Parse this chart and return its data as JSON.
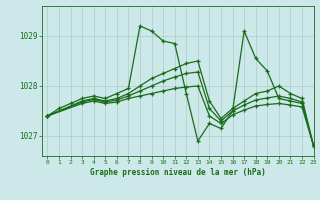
{
  "title": "Graphe pression niveau de la mer (hPa)",
  "background_color": "#cce8e8",
  "grid_color": "#aacccc",
  "line_color": "#1a6b1a",
  "xlim": [
    -0.5,
    23
  ],
  "ylim": [
    1026.6,
    1029.6
  ],
  "yticks": [
    1027,
    1028,
    1029
  ],
  "xticks": [
    0,
    1,
    2,
    3,
    4,
    5,
    6,
    7,
    8,
    9,
    10,
    11,
    12,
    13,
    14,
    15,
    16,
    17,
    18,
    19,
    20,
    21,
    22,
    23
  ],
  "series": [
    {
      "x": [
        0,
        1,
        2,
        3,
        4,
        5,
        6,
        7,
        8,
        9,
        10,
        11,
        12,
        13,
        14,
        15,
        16,
        17,
        18,
        19,
        20,
        21,
        22,
        23
      ],
      "y": [
        1027.4,
        1027.55,
        1027.65,
        1027.75,
        1027.8,
        1027.75,
        1027.85,
        1027.95,
        1029.2,
        1029.1,
        1028.9,
        1028.85,
        1027.85,
        1026.9,
        1027.25,
        1027.15,
        1027.5,
        1029.1,
        1028.55,
        1028.3,
        1027.75,
        1027.7,
        1027.65,
        1026.8
      ]
    },
    {
      "x": [
        0,
        3,
        4,
        5,
        6,
        7,
        8,
        9,
        10,
        11,
        12,
        13,
        14,
        15,
        16,
        17,
        18,
        19,
        20,
        21,
        22,
        23
      ],
      "y": [
        1027.4,
        1027.7,
        1027.75,
        1027.7,
        1027.75,
        1027.85,
        1028.0,
        1028.15,
        1028.25,
        1028.35,
        1028.45,
        1028.5,
        1027.7,
        1027.35,
        1027.55,
        1027.7,
        1027.85,
        1027.9,
        1028.0,
        1027.85,
        1027.75,
        1026.8
      ]
    },
    {
      "x": [
        0,
        3,
        4,
        5,
        6,
        7,
        8,
        9,
        10,
        11,
        12,
        13,
        14,
        15,
        16,
        17,
        18,
        19,
        20,
        21,
        22,
        23
      ],
      "y": [
        1027.4,
        1027.68,
        1027.73,
        1027.68,
        1027.72,
        1027.8,
        1027.9,
        1028.0,
        1028.1,
        1028.18,
        1028.25,
        1028.28,
        1027.55,
        1027.3,
        1027.5,
        1027.62,
        1027.72,
        1027.76,
        1027.8,
        1027.75,
        1027.68,
        1026.8
      ]
    },
    {
      "x": [
        0,
        3,
        4,
        5,
        6,
        7,
        8,
        9,
        10,
        11,
        12,
        13,
        14,
        15,
        16,
        17,
        18,
        19,
        20,
        21,
        22,
        23
      ],
      "y": [
        1027.4,
        1027.65,
        1027.7,
        1027.65,
        1027.68,
        1027.75,
        1027.8,
        1027.85,
        1027.9,
        1027.95,
        1027.98,
        1028.0,
        1027.4,
        1027.25,
        1027.42,
        1027.52,
        1027.6,
        1027.63,
        1027.65,
        1027.62,
        1027.58,
        1026.8
      ]
    }
  ]
}
